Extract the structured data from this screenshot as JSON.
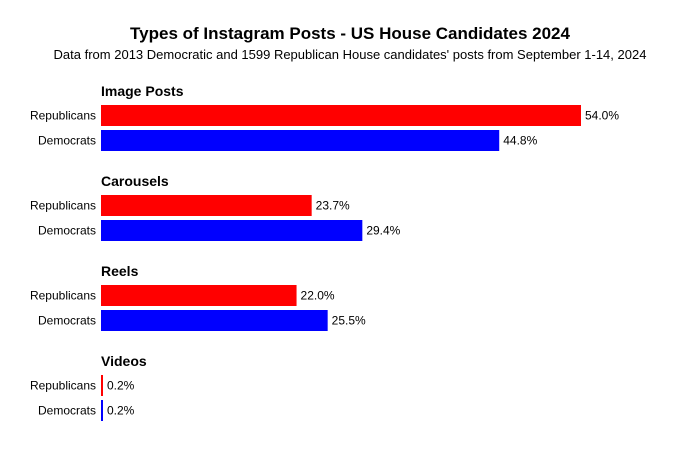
{
  "chart_data": {
    "type": "bar",
    "orientation": "horizontal",
    "title": "Types of Instagram Posts - US House Candidates 2024",
    "subtitle": "Data from 2013 Democratic and 1599 Republican House candidates' posts from September 1-14, 2024",
    "value_suffix": "%",
    "xlim": [
      0,
      54
    ],
    "grid": false,
    "legend": "none",
    "groups": [
      {
        "name": "Image Posts",
        "bars": [
          {
            "label": "Republicans",
            "value": 54.0,
            "display": "54.0%",
            "color": "#ff0000"
          },
          {
            "label": "Democrats",
            "value": 44.8,
            "display": "44.8%",
            "color": "#0000ff"
          }
        ]
      },
      {
        "name": "Carousels",
        "bars": [
          {
            "label": "Republicans",
            "value": 23.7,
            "display": "23.7%",
            "color": "#ff0000"
          },
          {
            "label": "Democrats",
            "value": 29.4,
            "display": "29.4%",
            "color": "#0000ff"
          }
        ]
      },
      {
        "name": "Reels",
        "bars": [
          {
            "label": "Republicans",
            "value": 22.0,
            "display": "22.0%",
            "color": "#ff0000"
          },
          {
            "label": "Democrats",
            "value": 25.5,
            "display": "25.5%",
            "color": "#0000ff"
          }
        ]
      },
      {
        "name": "Videos",
        "bars": [
          {
            "label": "Republicans",
            "value": 0.2,
            "display": "0.2%",
            "color": "#ff0000"
          },
          {
            "label": "Democrats",
            "value": 0.2,
            "display": "0.2%",
            "color": "#0000ff"
          }
        ]
      }
    ]
  }
}
